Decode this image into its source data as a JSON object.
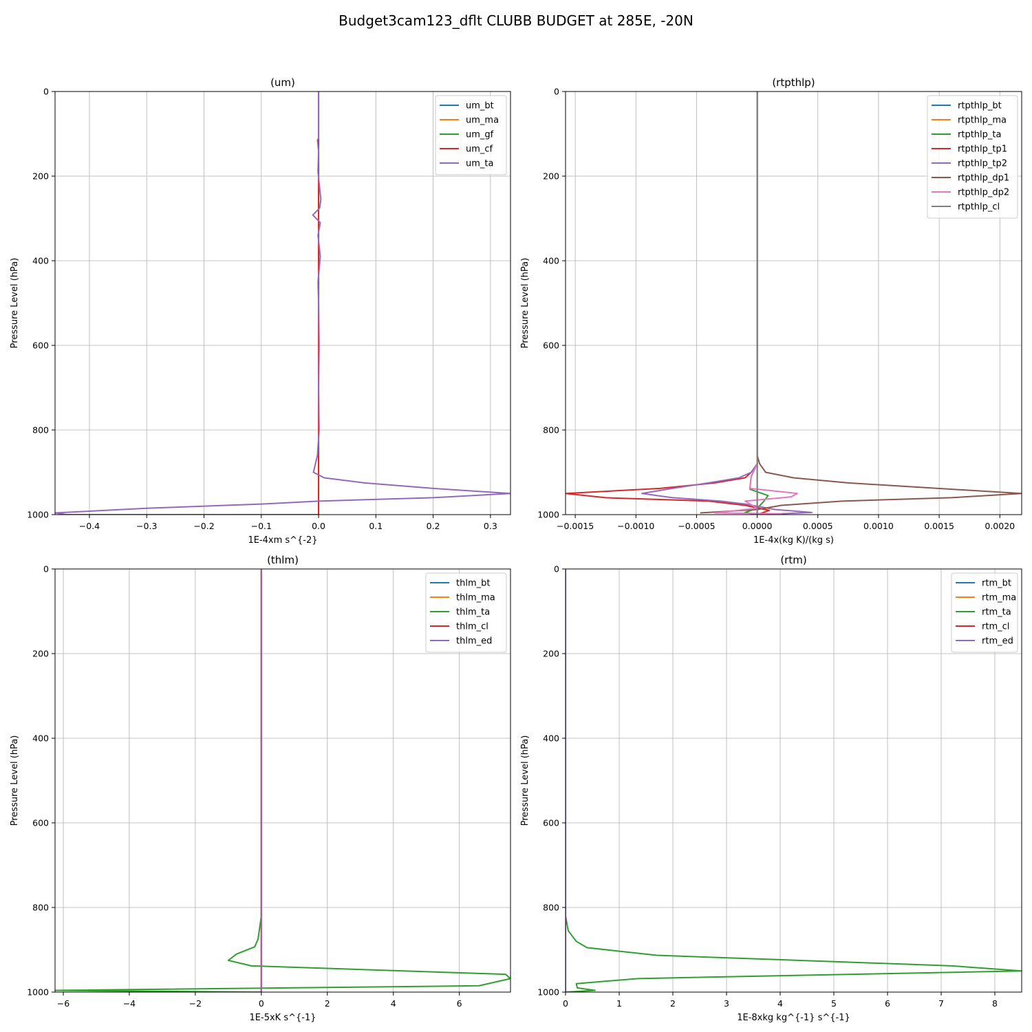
{
  "figure": {
    "title": "Budget3cam123_dflt CLUBB BUDGET at 285E, -20N"
  },
  "colors": {
    "C0": "#1f77b4",
    "C1": "#ff7f0e",
    "C2": "#2ca02c",
    "C3": "#d62728",
    "C4": "#9467bd",
    "C5": "#8c564b",
    "C6": "#e377c2",
    "C7": "#7f7f7f",
    "grid": "#b0b0b0"
  },
  "chart_data": [
    {
      "type": "line",
      "title": "(um)",
      "xlabel": "1E-4xm s^{-2}",
      "ylabel": "Pressure Level (hPa)",
      "xlim": [
        -0.46,
        0.335
      ],
      "ylim": [
        1000,
        0
      ],
      "xticks": [
        -0.4,
        -0.3,
        -0.2,
        -0.1,
        0.0,
        0.1,
        0.2,
        0.3
      ],
      "xticklabels": [
        "−0.4",
        "−0.3",
        "−0.2",
        "−0.1",
        "0.0",
        "0.1",
        "0.2",
        "0.3"
      ],
      "yticks": [
        0,
        200,
        400,
        600,
        800,
        1000
      ],
      "grid": true,
      "legend": "top-right",
      "series": [
        {
          "name": "um_bt",
          "color": "C0",
          "x": [
            0,
            0
          ],
          "y": [
            0,
            1000
          ]
        },
        {
          "name": "um_ma",
          "color": "C1",
          "x": [
            0,
            0
          ],
          "y": [
            0,
            1000
          ]
        },
        {
          "name": "um_gf",
          "color": "C2",
          "x": [
            0,
            0
          ],
          "y": [
            0,
            1000
          ]
        },
        {
          "name": "um_cf",
          "color": "C3",
          "x": [
            0,
            0
          ],
          "y": [
            0,
            1000
          ]
        },
        {
          "name": "um_ta",
          "color": "C4",
          "x": [
            0,
            0,
            -0.002,
            0,
            -0.001,
            0.002,
            0.004,
            0.002,
            -0.01,
            0.003,
            -0.001,
            0.001,
            0.003,
            0.001,
            -0.001,
            0.0,
            0.001,
            0.0,
            0.001,
            -0.002,
            -0.009,
            0.01,
            0.08,
            0.2,
            0.335,
            0.2,
            0.0,
            -0.1,
            -0.3,
            -0.46,
            -0.44,
            0.0
          ],
          "y": [
            0,
            110,
            115,
            140,
            190,
            230,
            255,
            275,
            292,
            310,
            340,
            365,
            390,
            420,
            450,
            500,
            600,
            700,
            800,
            860,
            900,
            913,
            925,
            938,
            950,
            960,
            968,
            975,
            985,
            996,
            1000,
            1000
          ]
        }
      ]
    },
    {
      "type": "line",
      "title": "(rtpthlp)",
      "xlabel": "1E-4x(kg K)/(kg s)",
      "ylabel": "Pressure Level (hPa)",
      "xlim": [
        -0.00158,
        0.00218
      ],
      "ylim": [
        1000,
        0
      ],
      "xticks": [
        -0.0015,
        -0.001,
        -0.0005,
        0.0,
        0.0005,
        0.001,
        0.0015,
        0.002
      ],
      "xticklabels": [
        "−0.0015",
        "−0.0010",
        "−0.0005",
        "0.0000",
        "0.0005",
        "0.0010",
        "0.0015",
        "0.0020"
      ],
      "yticks": [
        0,
        200,
        400,
        600,
        800,
        1000
      ],
      "grid": true,
      "legend": "top-right",
      "series": [
        {
          "name": "rtpthlp_bt",
          "color": "C0",
          "x": [
            0,
            0
          ],
          "y": [
            0,
            1000
          ]
        },
        {
          "name": "rtpthlp_ma",
          "color": "C1",
          "x": [
            0,
            0
          ],
          "y": [
            0,
            1000
          ]
        },
        {
          "name": "rtpthlp_ta",
          "color": "C2",
          "x": [
            0,
            0,
            -5e-05,
            -6e-05,
            9e-05,
            5e-05,
            0.0,
            -0.0001,
            0.0
          ],
          "y": [
            0,
            880,
            910,
            940,
            955,
            970,
            985,
            995,
            1000
          ]
        },
        {
          "name": "rtpthlp_tp1",
          "color": "C3",
          "x": [
            0,
            0,
            -5e-05,
            -0.0001,
            -0.00035,
            -0.0008,
            -0.00158,
            -0.00125,
            -0.0004,
            -0.0001,
            0.0001,
            0.0
          ],
          "y": [
            0,
            880,
            900,
            913,
            925,
            938,
            950,
            960,
            968,
            978,
            990,
            1000
          ]
        },
        {
          "name": "rtpthlp_tp2",
          "color": "C4",
          "x": [
            0,
            0,
            -5e-05,
            -0.00015,
            -0.0004,
            -0.0007,
            -0.00095,
            -0.0007,
            -0.0003,
            -0.0001,
            0.00015,
            0.00045,
            0.0
          ],
          "y": [
            0,
            880,
            900,
            913,
            925,
            938,
            950,
            960,
            968,
            975,
            988,
            995,
            1000
          ]
        },
        {
          "name": "rtpthlp_dp1",
          "color": "C5",
          "x": [
            0,
            0,
            2e-05,
            7e-05,
            0.0003,
            0.00075,
            0.00218,
            0.0016,
            0.0007,
            0.0002,
            0.0,
            -0.00047
          ],
          "y": [
            0,
            860,
            880,
            900,
            913,
            925,
            950,
            960,
            968,
            978,
            988,
            996
          ]
        },
        {
          "name": "rtpthlp_dp2",
          "color": "C6",
          "x": [
            0,
            0,
            -5e-05,
            -6e-05,
            0.00033,
            0.00028,
            -0.0001,
            0.0,
            -0.00035,
            0.0002,
            0.0
          ],
          "y": [
            0,
            880,
            910,
            938,
            950,
            958,
            968,
            985,
            996,
            998,
            1000
          ]
        },
        {
          "name": "rtpthlp_cl",
          "color": "C7",
          "x": [
            0,
            0
          ],
          "y": [
            0,
            1000
          ]
        }
      ]
    },
    {
      "type": "line",
      "title": "(thlm)",
      "xlabel": "1E-5xK s^{-1}",
      "ylabel": "Pressure Level (hPa)",
      "xlim": [
        -6.25,
        7.55
      ],
      "ylim": [
        1000,
        0
      ],
      "xticks": [
        -6,
        -4,
        -2,
        0,
        2,
        4,
        6
      ],
      "xticklabels": [
        "−6",
        "−4",
        "−2",
        "0",
        "2",
        "4",
        "6"
      ],
      "yticks": [
        0,
        200,
        400,
        600,
        800,
        1000
      ],
      "grid": true,
      "legend": "top-right",
      "series": [
        {
          "name": "thlm_bt",
          "color": "C0",
          "x": [
            0,
            0
          ],
          "y": [
            0,
            1000
          ]
        },
        {
          "name": "thlm_ma",
          "color": "C1",
          "x": [
            0,
            0
          ],
          "y": [
            0,
            1000
          ]
        },
        {
          "name": "thlm_ta",
          "color": "C2",
          "x": [
            0,
            0,
            -0.1,
            -0.2,
            -0.75,
            -1.0,
            -0.3,
            7.4,
            7.55,
            6.6,
            -6.25,
            -0.2,
            0.0
          ],
          "y": [
            0,
            820,
            875,
            893,
            910,
            925,
            938,
            958,
            968,
            985,
            996,
            1000,
            1000
          ]
        },
        {
          "name": "thlm_cl",
          "color": "C3",
          "x": [
            0,
            0
          ],
          "y": [
            0,
            1000
          ]
        },
        {
          "name": "thlm_ed",
          "color": "C4",
          "x": [
            0,
            0
          ],
          "y": [
            0,
            1000
          ]
        }
      ]
    },
    {
      "type": "line",
      "title": "(rtm)",
      "xlabel": "1E-8xkg kg^{-1} s^{-1}",
      "ylabel": "Pressure Level (hPa)",
      "xlim": [
        0,
        8.5
      ],
      "ylim": [
        1000,
        0
      ],
      "xticks": [
        0,
        1,
        2,
        3,
        4,
        5,
        6,
        7,
        8
      ],
      "xticklabels": [
        "0",
        "1",
        "2",
        "3",
        "4",
        "5",
        "6",
        "7",
        "8"
      ],
      "yticks": [
        0,
        200,
        400,
        600,
        800,
        1000
      ],
      "grid": true,
      "legend": "top-right",
      "series": [
        {
          "name": "rtm_bt",
          "color": "C0",
          "x": [
            0,
            0
          ],
          "y": [
            0,
            1000
          ]
        },
        {
          "name": "rtm_ma",
          "color": "C1",
          "x": [
            0,
            0
          ],
          "y": [
            0,
            1000
          ]
        },
        {
          "name": "rtm_ta",
          "color": "C2",
          "x": [
            0,
            0,
            0.05,
            0.2,
            0.4,
            1.7,
            7.2,
            8.5,
            1.35,
            0.2,
            0.22,
            0.55,
            0.0
          ],
          "y": [
            0,
            820,
            855,
            880,
            895,
            913,
            938,
            950,
            968,
            980,
            990,
            996,
            1000
          ]
        },
        {
          "name": "rtm_cl",
          "color": "C3",
          "x": [
            0,
            0
          ],
          "y": [
            0,
            1000
          ]
        },
        {
          "name": "rtm_ed",
          "color": "C4",
          "x": [
            0,
            0
          ],
          "y": [
            0,
            1000
          ]
        }
      ]
    }
  ]
}
